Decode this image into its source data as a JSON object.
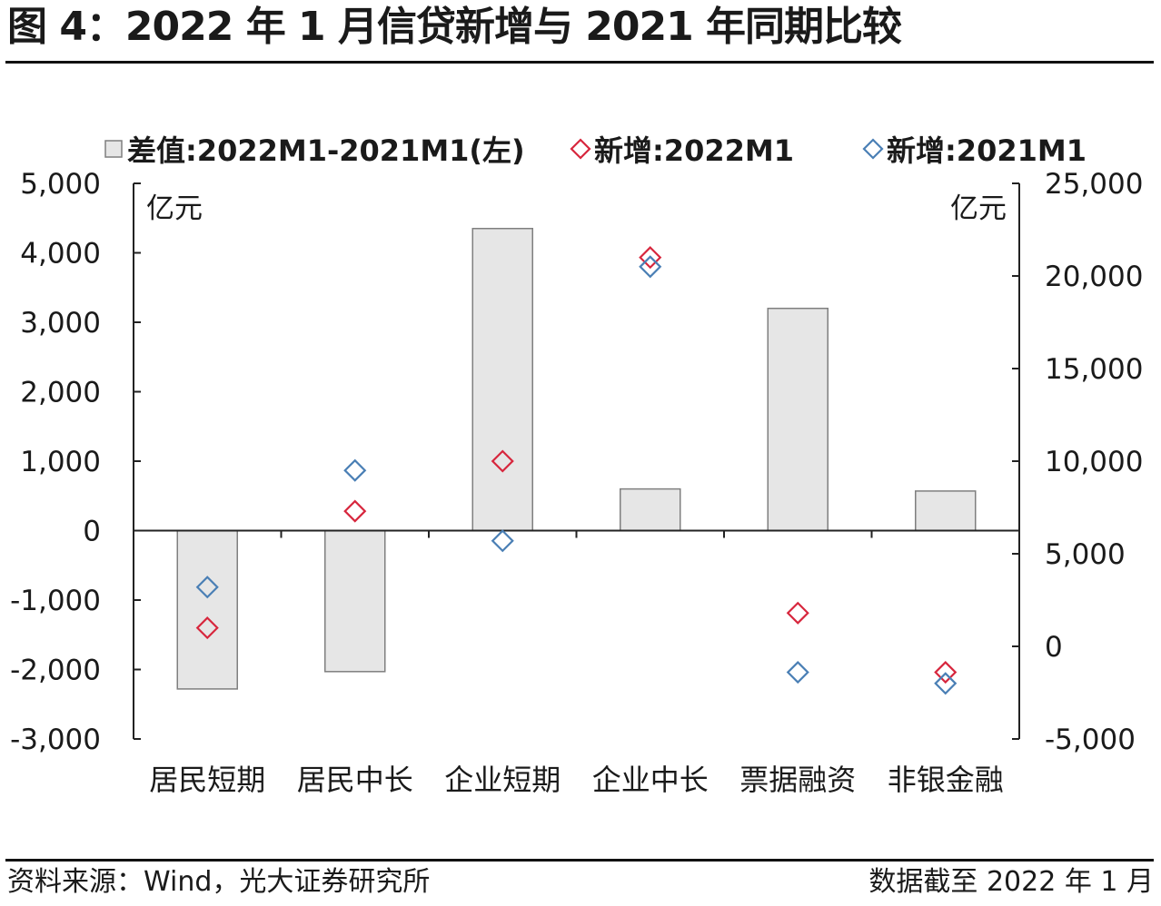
{
  "figure": {
    "title": "图 4：2022 年 1 月信贷新增与 2021 年同期比较",
    "source": "资料来源：Wind，光大证券研究所",
    "data_date": "数据截至 2022 年 1 月"
  },
  "chart_data": {
    "type": "bar",
    "categories": [
      "居民短期",
      "居民中长",
      "企业短期",
      "企业中长",
      "票据融资",
      "非银金融"
    ],
    "left_axis": {
      "unit": "亿元",
      "ylim": [
        -3000,
        5000
      ],
      "ticks": [
        5000,
        4000,
        3000,
        2000,
        1000,
        0,
        -1000,
        -2000,
        -3000
      ],
      "tick_labels": [
        "5,000",
        "4,000",
        "3,000",
        "2,000",
        "1,000",
        "0",
        "-1,000",
        "-2,000",
        "-3,000"
      ]
    },
    "right_axis": {
      "unit": "亿元",
      "ylim": [
        -5000,
        25000
      ],
      "ticks": [
        25000,
        20000,
        15000,
        10000,
        5000,
        0,
        -5000
      ],
      "tick_labels": [
        "25,000",
        "20,000",
        "15,000",
        "10,000",
        "5,000",
        "0",
        "-5,000"
      ]
    },
    "series": [
      {
        "name": "差值:2022M1-2021M1(左)",
        "kind": "bar",
        "axis": "left",
        "values": [
          -2280,
          -2030,
          4350,
          600,
          3200,
          570
        ],
        "color": "#e6e6e6",
        "stroke": "#7f7f7f"
      },
      {
        "name": "新增:2022M1",
        "kind": "marker",
        "axis": "right",
        "values": [
          1000,
          7300,
          10000,
          21000,
          1800,
          -1400
        ],
        "color": "#d7263d"
      },
      {
        "name": "新增:2021M1",
        "kind": "marker",
        "axis": "right",
        "values": [
          3200,
          9500,
          5700,
          20500,
          -1400,
          -2000
        ],
        "color": "#4a7fb5"
      }
    ],
    "grid": false,
    "legend_position": "top"
  }
}
